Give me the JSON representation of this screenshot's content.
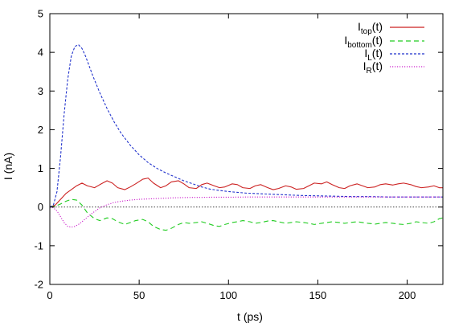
{
  "chart_data": {
    "type": "line",
    "xlabel": "t (ps)",
    "ylabel": "I (nA)",
    "xlim": [
      0,
      220
    ],
    "ylim": [
      -2,
      5
    ],
    "x_ticks": [
      0,
      50,
      100,
      150,
      200
    ],
    "y_ticks": [
      -2,
      -1,
      0,
      1,
      2,
      3,
      4,
      5
    ],
    "grid": false,
    "legend_position": "top-right",
    "zero_line": true,
    "series": [
      {
        "name": "I_top(t)",
        "label_main": "I",
        "label_sub": "top",
        "label_tail": "(t)",
        "color": "#cc2222",
        "style": "solid",
        "x": [
          0,
          3,
          6,
          9,
          12,
          15,
          18,
          21,
          25,
          28,
          32,
          35,
          38,
          42,
          45,
          48,
          52,
          55,
          58,
          62,
          65,
          68,
          72,
          75,
          78,
          82,
          85,
          88,
          92,
          95,
          98,
          102,
          105,
          108,
          112,
          115,
          118,
          122,
          125,
          128,
          132,
          135,
          138,
          142,
          145,
          148,
          152,
          155,
          158,
          162,
          165,
          168,
          172,
          175,
          178,
          182,
          185,
          188,
          192,
          195,
          198,
          202,
          205,
          208,
          212,
          215,
          218,
          220
        ],
        "y": [
          0.0,
          0.05,
          0.2,
          0.35,
          0.45,
          0.55,
          0.62,
          0.55,
          0.5,
          0.58,
          0.68,
          0.62,
          0.5,
          0.45,
          0.52,
          0.6,
          0.72,
          0.75,
          0.62,
          0.5,
          0.55,
          0.65,
          0.68,
          0.6,
          0.5,
          0.48,
          0.58,
          0.62,
          0.55,
          0.5,
          0.52,
          0.6,
          0.58,
          0.5,
          0.48,
          0.55,
          0.58,
          0.5,
          0.45,
          0.48,
          0.55,
          0.52,
          0.46,
          0.48,
          0.55,
          0.62,
          0.6,
          0.65,
          0.58,
          0.5,
          0.48,
          0.55,
          0.6,
          0.55,
          0.5,
          0.52,
          0.58,
          0.6,
          0.57,
          0.6,
          0.62,
          0.58,
          0.53,
          0.5,
          0.52,
          0.55,
          0.5,
          0.5
        ]
      },
      {
        "name": "I_bottom(t)",
        "label_main": "I",
        "label_sub": "bottom",
        "label_tail": "(t)",
        "color": "#22cc22",
        "style": "dashed",
        "x": [
          0,
          3,
          6,
          9,
          12,
          15,
          18,
          21,
          25,
          28,
          32,
          35,
          38,
          42,
          45,
          48,
          52,
          55,
          58,
          62,
          65,
          68,
          72,
          75,
          78,
          82,
          85,
          88,
          92,
          95,
          98,
          102,
          105,
          108,
          112,
          115,
          118,
          122,
          125,
          128,
          132,
          135,
          138,
          142,
          145,
          148,
          152,
          155,
          158,
          162,
          165,
          168,
          172,
          175,
          178,
          182,
          185,
          188,
          192,
          195,
          198,
          202,
          205,
          208,
          212,
          215,
          218,
          220
        ],
        "y": [
          0.0,
          0.02,
          0.08,
          0.15,
          0.2,
          0.18,
          0.05,
          -0.15,
          -0.3,
          -0.35,
          -0.28,
          -0.3,
          -0.38,
          -0.45,
          -0.4,
          -0.35,
          -0.32,
          -0.38,
          -0.5,
          -0.58,
          -0.6,
          -0.55,
          -0.45,
          -0.4,
          -0.42,
          -0.4,
          -0.38,
          -0.42,
          -0.48,
          -0.5,
          -0.45,
          -0.4,
          -0.38,
          -0.35,
          -0.38,
          -0.42,
          -0.4,
          -0.36,
          -0.35,
          -0.38,
          -0.42,
          -0.4,
          -0.38,
          -0.4,
          -0.42,
          -0.45,
          -0.42,
          -0.4,
          -0.38,
          -0.4,
          -0.42,
          -0.4,
          -0.38,
          -0.4,
          -0.42,
          -0.44,
          -0.42,
          -0.4,
          -0.42,
          -0.44,
          -0.45,
          -0.42,
          -0.38,
          -0.4,
          -0.42,
          -0.38,
          -0.3,
          -0.28
        ]
      },
      {
        "name": "I_L(t)",
        "label_main": "I",
        "label_sub": "L",
        "label_tail": "(t)",
        "color": "#2233cc",
        "style": "dashed-short",
        "x": [
          0,
          2,
          4,
          6,
          8,
          10,
          12,
          14,
          16,
          18,
          20,
          24,
          28,
          32,
          36,
          40,
          45,
          50,
          55,
          60,
          65,
          70,
          75,
          80,
          85,
          90,
          100,
          110,
          120,
          130,
          140,
          150,
          160,
          170,
          180,
          190,
          200,
          210,
          220
        ],
        "y": [
          0.0,
          0.05,
          0.4,
          1.3,
          2.4,
          3.3,
          3.9,
          4.15,
          4.2,
          4.1,
          3.9,
          3.4,
          2.95,
          2.55,
          2.2,
          1.9,
          1.6,
          1.35,
          1.15,
          1.0,
          0.88,
          0.78,
          0.68,
          0.6,
          0.52,
          0.46,
          0.4,
          0.36,
          0.34,
          0.32,
          0.3,
          0.29,
          0.28,
          0.27,
          0.27,
          0.26,
          0.26,
          0.26,
          0.26
        ]
      },
      {
        "name": "I_R(t)",
        "label_main": "I",
        "label_sub": "R",
        "label_tail": "(t)",
        "color": "#cc22cc",
        "style": "dotted",
        "x": [
          0,
          2,
          4,
          6,
          8,
          10,
          12,
          14,
          16,
          18,
          20,
          24,
          28,
          32,
          36,
          40,
          45,
          50,
          55,
          60,
          65,
          70,
          75,
          80,
          85,
          90,
          100,
          110,
          120,
          130,
          140,
          150,
          160,
          170,
          180,
          190,
          200,
          210,
          220
        ],
        "y": [
          0.0,
          -0.02,
          -0.1,
          -0.25,
          -0.4,
          -0.5,
          -0.52,
          -0.5,
          -0.45,
          -0.38,
          -0.3,
          -0.15,
          -0.02,
          0.06,
          0.12,
          0.15,
          0.18,
          0.2,
          0.21,
          0.22,
          0.23,
          0.24,
          0.245,
          0.25,
          0.25,
          0.255,
          0.255,
          0.26,
          0.26,
          0.26,
          0.26,
          0.26,
          0.26,
          0.26,
          0.26,
          0.26,
          0.26,
          0.26,
          0.26
        ]
      }
    ]
  }
}
